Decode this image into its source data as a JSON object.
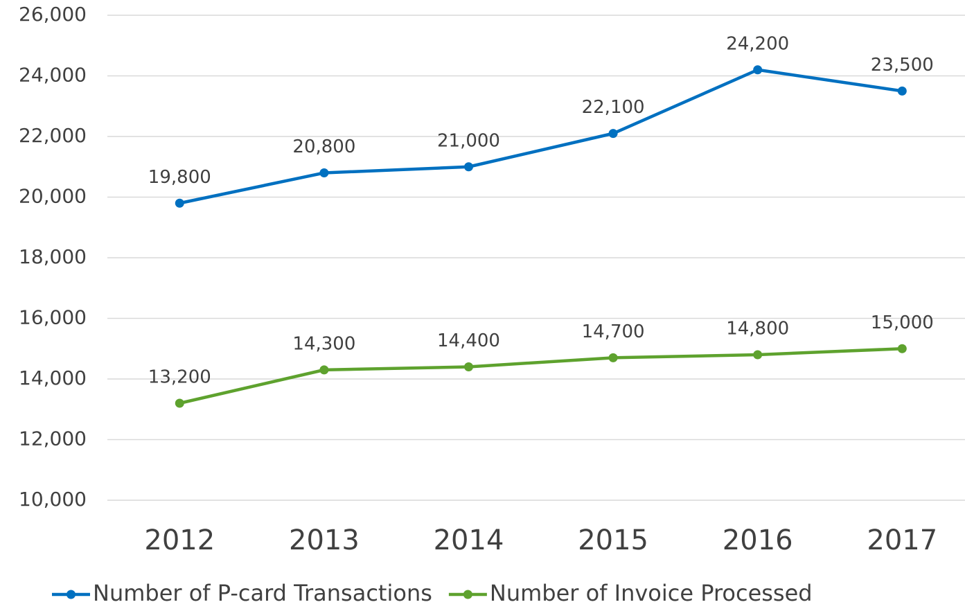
{
  "chart_data": {
    "type": "line",
    "categories": [
      "2012",
      "2013",
      "2014",
      "2015",
      "2016",
      "2017"
    ],
    "series": [
      {
        "name": "Number of P-card Transactions",
        "color": "#0070c0",
        "values": [
          19800,
          20800,
          21000,
          22100,
          24200,
          23500
        ],
        "value_labels": [
          "19,800",
          "20,800",
          "21,000",
          "22,100",
          "24,200",
          "23,500"
        ]
      },
      {
        "name": "Number of Invoice Processed",
        "color": "#5ea22e",
        "values": [
          13200,
          14300,
          14400,
          14700,
          14800,
          15000
        ],
        "value_labels": [
          "13,200",
          "14,300",
          "14,400",
          "14,700",
          "14,800",
          "15,000"
        ]
      }
    ],
    "ylim": [
      10000,
      26000
    ],
    "yticks": [
      {
        "value": 10000,
        "label": "10,000"
      },
      {
        "value": 12000,
        "label": "12,000"
      },
      {
        "value": 14000,
        "label": "14,000"
      },
      {
        "value": 16000,
        "label": "16,000"
      },
      {
        "value": 18000,
        "label": "18,000"
      },
      {
        "value": 20000,
        "label": "20,000"
      },
      {
        "value": 22000,
        "label": "22,000"
      },
      {
        "value": 24000,
        "label": "24,000"
      },
      {
        "value": 26000,
        "label": "26,000"
      }
    ],
    "grid": true,
    "legend": "bottom"
  }
}
